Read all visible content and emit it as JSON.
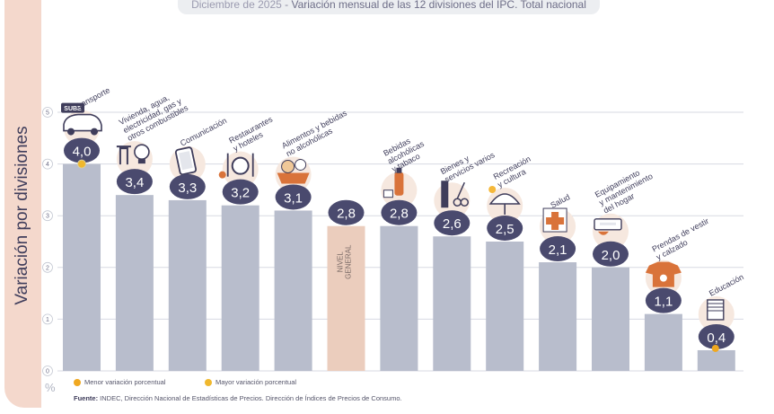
{
  "header": {
    "date": "Diciembre de 2025",
    "separator": " - ",
    "title": "Variación mensual de las 12 divisiones del IPC. Total nacional"
  },
  "legend": {
    "min": "Menor variación porcentual",
    "max": "Mayor variación porcentual"
  },
  "source": {
    "label": "Fuente:",
    "text": " INDEC, Dirección Nacional de Estadísticas de Precios. Dirección de Índices de Precios de Consumo."
  },
  "unit": "%",
  "colors": {
    "bar": "#b8bdcc",
    "highlight_bar": "#ebcdbd",
    "badge": "#4a4a6e",
    "icon_bg": "#f6e8df",
    "icon_ink": "#3f3d5b",
    "icon_accent": "#d9733a",
    "min_dot": "#f0a820",
    "max_dot": "#f0b82e"
  },
  "chart_data": {
    "type": "bar",
    "ylabel": "Variación por divisiones",
    "ylim": [
      0,
      5
    ],
    "yticks": [
      "0",
      "1",
      "2",
      "3",
      "4",
      "5"
    ],
    "grid": true,
    "categories": [
      "Transporte",
      "Vivienda, agua, electricidad, gas y otros combustibles",
      "Comunicación",
      "Restaurantes y hoteles",
      "Alimentos y bebidas no alcohólicas",
      "NIVEL GENERAL",
      "Bebidas alcohólicas y tabaco",
      "Bienes y servicios varios",
      "Recreación y cultura",
      "Salud",
      "Equipamiento y mantenimiento del hogar",
      "Prendas de vestir y calzado",
      "Educación"
    ],
    "label_lines": [
      [
        "Transporte"
      ],
      [
        "Vivienda, agua,",
        "electricidad, gas y",
        "otros combustibles"
      ],
      [
        "Comunicación"
      ],
      [
        "Restaurantes",
        "y hoteles"
      ],
      [
        "Alimentos y bebidas",
        "no alcohólicas"
      ],
      [
        "NIVEL",
        "GENERAL"
      ],
      [
        "Bebidas",
        "alcohólicas",
        "y tabaco"
      ],
      [
        "Bienes y",
        "servicios varios"
      ],
      [
        "Recreación",
        "y cultura"
      ],
      [
        "Salud"
      ],
      [
        "Equipamiento",
        "y mantenimiento",
        "del hogar"
      ],
      [
        "Prendas de vestir",
        "y calzado"
      ],
      [
        "Educación"
      ]
    ],
    "values": [
      4.0,
      3.4,
      3.3,
      3.2,
      3.1,
      2.8,
      2.8,
      2.6,
      2.5,
      2.1,
      2.0,
      1.1,
      0.4
    ],
    "value_labels": [
      "4,0",
      "3,4",
      "3,3",
      "3,2",
      "3,1",
      "2,8",
      "2,8",
      "2,6",
      "2,5",
      "2,1",
      "2,0",
      "1,1",
      "0,4"
    ],
    "highlight_index": 5,
    "max_index": 0,
    "min_index": 12,
    "icons": [
      "car-icon",
      "faucet-bulb-icon",
      "phone-icon",
      "dining-icon",
      "grocery-basket-icon",
      "none",
      "bottle-icon",
      "comb-scissors-icon",
      "umbrella-icon",
      "health-cross-icon",
      "air-conditioner-icon",
      "tshirt-icon",
      "notebook-icon"
    ],
    "sube_text": "SUBE"
  }
}
